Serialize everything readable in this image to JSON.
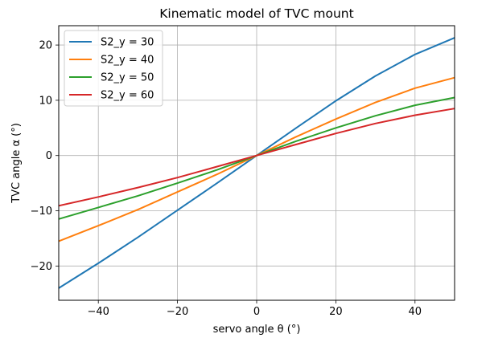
{
  "chart_data": {
    "type": "line",
    "title": "Kinematic model of TVC mount",
    "xlabel": "servo angle θ (°)",
    "ylabel": "TVC angle α (°)",
    "xlim": [
      -50,
      50
    ],
    "ylim": [
      -26.2,
      23.5
    ],
    "xticks": [
      -40,
      -20,
      0,
      20,
      40
    ],
    "xtick_labels": [
      "−40",
      "−20",
      "0",
      "20",
      "40"
    ],
    "yticks": [
      -20,
      -10,
      0,
      10,
      20
    ],
    "ytick_labels": [
      "−20",
      "−10",
      "0",
      "10",
      "20"
    ],
    "grid": true,
    "legend_position": "top-left",
    "x": [
      -50,
      -40,
      -30,
      -20,
      -10,
      0,
      10,
      20,
      30,
      40,
      50
    ],
    "series": [
      {
        "name": "S2_y = 30",
        "color": "#1f77b4",
        "values": [
          -24.0,
          -19.5,
          -14.8,
          -9.9,
          -5.0,
          0.0,
          5.0,
          9.9,
          14.4,
          18.3,
          21.3
        ]
      },
      {
        "name": "S2_y = 40",
        "color": "#ff7f0e",
        "values": [
          -15.5,
          -12.7,
          -9.8,
          -6.6,
          -3.4,
          0.0,
          3.4,
          6.6,
          9.6,
          12.2,
          14.1
        ]
      },
      {
        "name": "S2_y = 50",
        "color": "#2ca02c",
        "values": [
          -11.5,
          -9.4,
          -7.3,
          -5.0,
          -2.6,
          0.0,
          2.6,
          5.0,
          7.2,
          9.1,
          10.5
        ]
      },
      {
        "name": "S2_y = 60",
        "color": "#d62728",
        "values": [
          -9.1,
          -7.5,
          -5.8,
          -4.0,
          -2.0,
          0.0,
          2.0,
          4.0,
          5.8,
          7.3,
          8.5
        ]
      }
    ]
  }
}
